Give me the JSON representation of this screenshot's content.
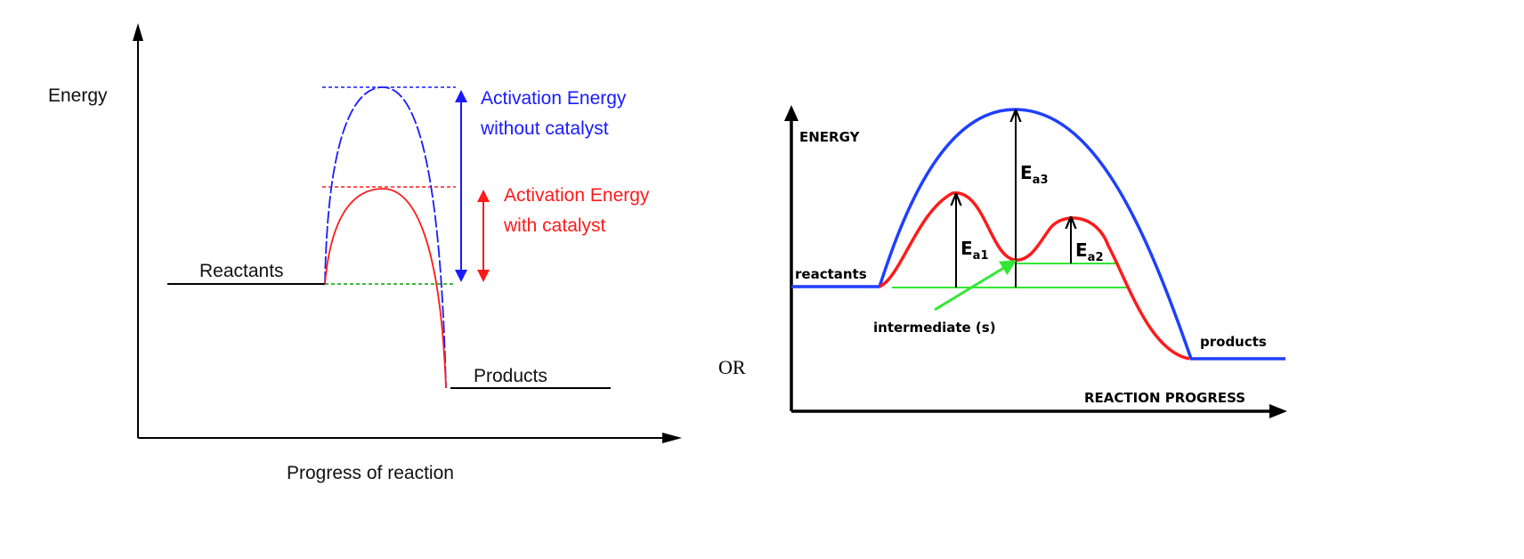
{
  "diagram_left": {
    "y_axis_label": "Energy",
    "x_axis_label": "Progress of reaction",
    "reactants_label": "Reactants",
    "products_label": "Products",
    "uncatalyzed": {
      "label_line1": "Activation Energy",
      "label_line2": "without catalyst",
      "color": "#1a1aff"
    },
    "catalyzed": {
      "label_line1": "Activation Energy",
      "label_line2": "with catalyst",
      "color": "#ff1a1a"
    },
    "baseline_color": "#00a000"
  },
  "separator": "OR",
  "diagram_right": {
    "y_axis_label": "ENERGY",
    "x_axis_label": "REACTION PROGRESS",
    "reactants_label": "reactants",
    "products_label": "products",
    "intermediate_label": "intermediate (s)",
    "ea1": {
      "main": "E",
      "sub": "a1"
    },
    "ea2": {
      "main": "E",
      "sub": "a2"
    },
    "ea3": {
      "main": "E",
      "sub": "a3"
    },
    "single_step_color": "#1f3fff",
    "multi_step_color": "#ff1a1a",
    "level_color": "#33e633"
  }
}
